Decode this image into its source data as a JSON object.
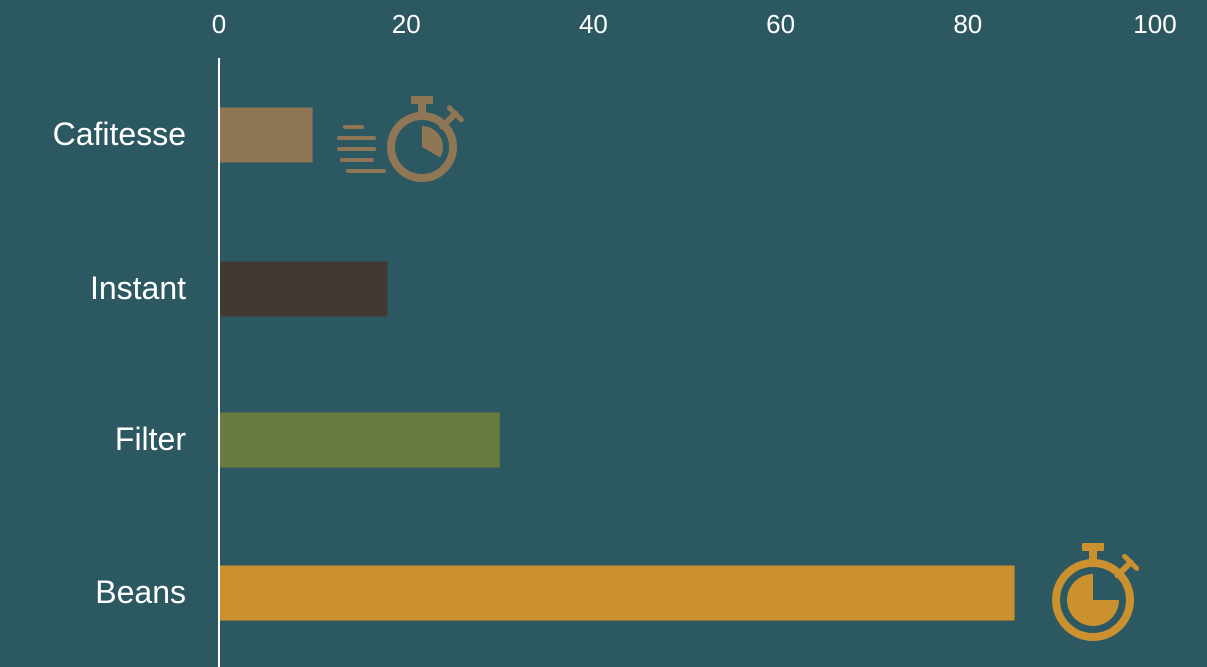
{
  "chart_data": {
    "type": "bar",
    "orientation": "horizontal",
    "categories": [
      "Cafitesse",
      "Instant",
      "Filter",
      "Beans"
    ],
    "values": [
      10,
      18,
      30,
      85
    ],
    "colors": [
      "#8f7655",
      "#403a33",
      "#6a7b40",
      "#cc912f"
    ],
    "xticks": [
      "0",
      "20",
      "40",
      "60",
      "80",
      "100"
    ],
    "xlim": [
      0,
      100
    ],
    "grid": false,
    "axis_position": "top",
    "icons": [
      {
        "category": "Cafitesse",
        "name": "fast-stopwatch-icon",
        "color": "#8f7655"
      },
      {
        "category": "Beans",
        "name": "stopwatch-icon",
        "color": "#cc912f"
      }
    ]
  },
  "colors": {
    "background": "#2b5861",
    "text": "#ffffff",
    "axis": "#ffffff"
  }
}
